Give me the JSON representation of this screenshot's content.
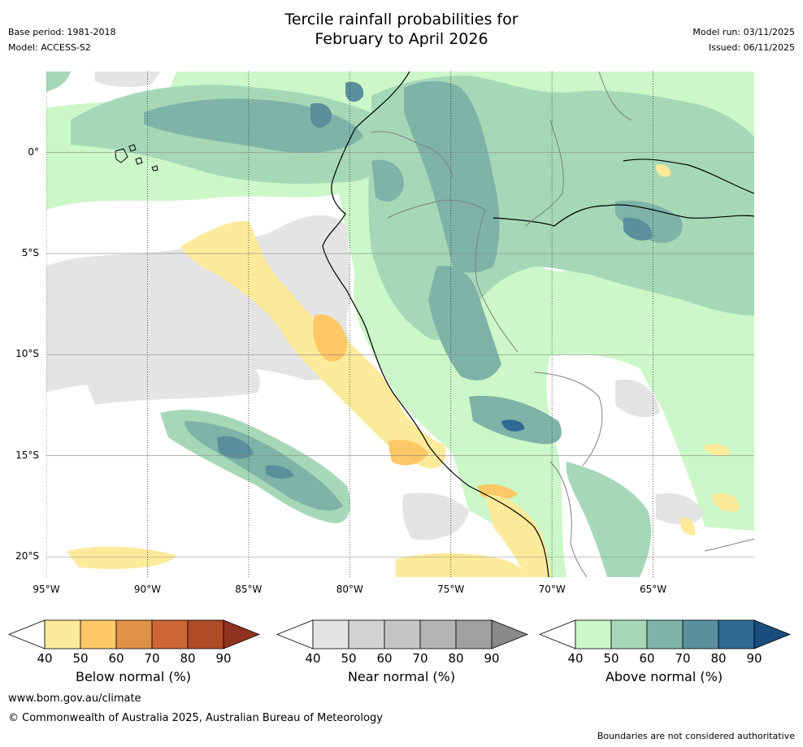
{
  "header": {
    "title_line1": "Tercile rainfall probabilities for",
    "title_line2": "February to April 2026",
    "base_period": "Base period: 1981-2018",
    "model": "Model: ACCESS-S2",
    "model_run": "Model run: 03/11/2025",
    "issued": "Issued: 06/11/2025"
  },
  "map": {
    "lon_ticks": [
      "95°W",
      "90°W",
      "85°W",
      "80°W",
      "75°W",
      "70°W",
      "65°W"
    ],
    "lat_ticks": [
      "0°",
      "5°S",
      "10°S",
      "15°S",
      "20°S"
    ],
    "lon_values": [
      -95,
      -90,
      -85,
      -80,
      -75,
      -70,
      -65
    ],
    "lat_values": [
      0,
      -5,
      -10,
      -15,
      -20
    ],
    "extent": {
      "lon_min": -95,
      "lon_max": -60,
      "lat_min": -21,
      "lat_max": 4
    }
  },
  "colorbars": [
    {
      "label": "Below normal (%)",
      "ticks": [
        "40",
        "50",
        "60",
        "70",
        "80",
        "90"
      ],
      "colors": [
        "#ffffff",
        "#fdea9a",
        "#fdc865",
        "#e09148",
        "#cd6534",
        "#b04b28",
        "#8f3320"
      ]
    },
    {
      "label": "Near normal (%)",
      "ticks": [
        "40",
        "50",
        "60",
        "70",
        "80",
        "90"
      ],
      "colors": [
        "#ffffff",
        "#e4e4e4",
        "#d3d3d3",
        "#c5c5c5",
        "#b4b4b4",
        "#a0a0a0",
        "#8a8a8a"
      ]
    },
    {
      "label": "Above normal (%)",
      "ticks": [
        "40",
        "50",
        "60",
        "70",
        "80",
        "90"
      ],
      "colors": [
        "#ffffff",
        "#ccf7c8",
        "#a6d8b8",
        "#7fb3a8",
        "#5a909c",
        "#2f6994",
        "#1a4d7c"
      ]
    }
  ],
  "footer": {
    "url": "www.bom.gov.au/climate",
    "copyright": "© Commonwealth of Australia 2025, Australian Bureau of Meteorology",
    "disclaimer": "Boundaries are not considered authoritative"
  }
}
